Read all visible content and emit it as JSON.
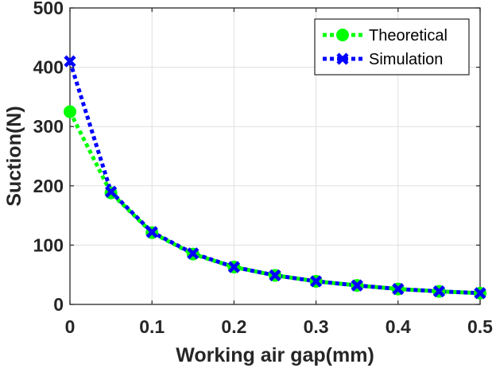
{
  "chart_data": {
    "type": "line",
    "title": "",
    "xlabel": "Working air gap(mm)",
    "ylabel": "Suction(N)",
    "xlim": [
      0,
      0.5
    ],
    "ylim": [
      0,
      500
    ],
    "xticks": [
      0,
      0.1,
      0.2,
      0.3,
      0.4,
      0.5
    ],
    "xtick_labels": [
      "0",
      "0.1",
      "0.2",
      "0.3",
      "0.4",
      "0.5"
    ],
    "yticks": [
      0,
      100,
      200,
      300,
      400,
      500
    ],
    "ytick_labels": [
      "0",
      "100",
      "200",
      "300",
      "400",
      "500"
    ],
    "grid": true,
    "legend_position": "top-right",
    "x": [
      0,
      0.05,
      0.1,
      0.15,
      0.2,
      0.25,
      0.3,
      0.35,
      0.4,
      0.45,
      0.5
    ],
    "series": [
      {
        "name": "Theoretical",
        "color": "#00ff00",
        "marker": "filled-circle",
        "linestyle": "dotted",
        "values": [
          325,
          188,
          121,
          85,
          63,
          49,
          39,
          32,
          26,
          22,
          19
        ]
      },
      {
        "name": "Simulation",
        "color": "#0000ff",
        "marker": "x",
        "linestyle": "dotted",
        "values": [
          410,
          190,
          122,
          86,
          63,
          49,
          39,
          32,
          26,
          22,
          19
        ]
      }
    ]
  }
}
